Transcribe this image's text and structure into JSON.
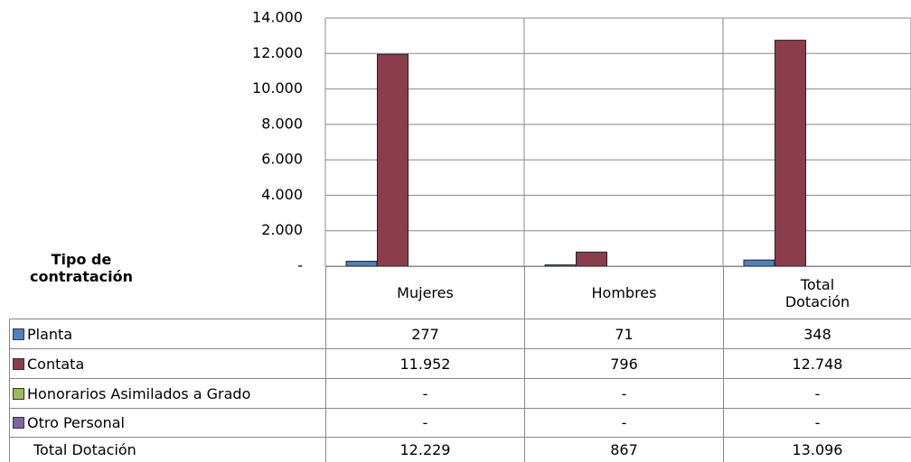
{
  "chart_data": {
    "type": "bar",
    "table_header": "Tipo de contratación",
    "categories": [
      "Mujeres",
      "Hombres",
      "Total Dotación"
    ],
    "series": [
      {
        "name": "Planta",
        "color": "#4f81bd",
        "values": [
          277,
          71,
          348
        ],
        "value_labels": [
          "277",
          "71",
          "348"
        ]
      },
      {
        "name": "Contata",
        "color": "#8b3d4b",
        "values": [
          11952,
          796,
          12748
        ],
        "value_labels": [
          "11.952",
          "796",
          "12.748"
        ]
      },
      {
        "name": "Honorarios Asimilados a Grado",
        "color": "#9bbb59",
        "values": [
          null,
          null,
          null
        ],
        "value_labels": [
          "-",
          "-",
          "-"
        ]
      },
      {
        "name": "Otro Personal",
        "color": "#8064a2",
        "values": [
          null,
          null,
          null
        ],
        "value_labels": [
          "-",
          "-",
          "-"
        ]
      }
    ],
    "total_row": {
      "name": "Total Dotación",
      "values": [
        12229,
        867,
        13096
      ],
      "value_labels": [
        "12.229",
        "867",
        "13.096"
      ]
    },
    "ylim": [
      0,
      14000
    ],
    "yticks": [
      {
        "value": 0,
        "label": "-"
      },
      {
        "value": 2000,
        "label": "2.000"
      },
      {
        "value": 4000,
        "label": "4.000"
      },
      {
        "value": 6000,
        "label": "6.000"
      },
      {
        "value": 8000,
        "label": "8.000"
      },
      {
        "value": 10000,
        "label": "10.000"
      },
      {
        "value": 12000,
        "label": "12.000"
      },
      {
        "value": 14000,
        "label": "14.000"
      }
    ],
    "grid": true
  }
}
